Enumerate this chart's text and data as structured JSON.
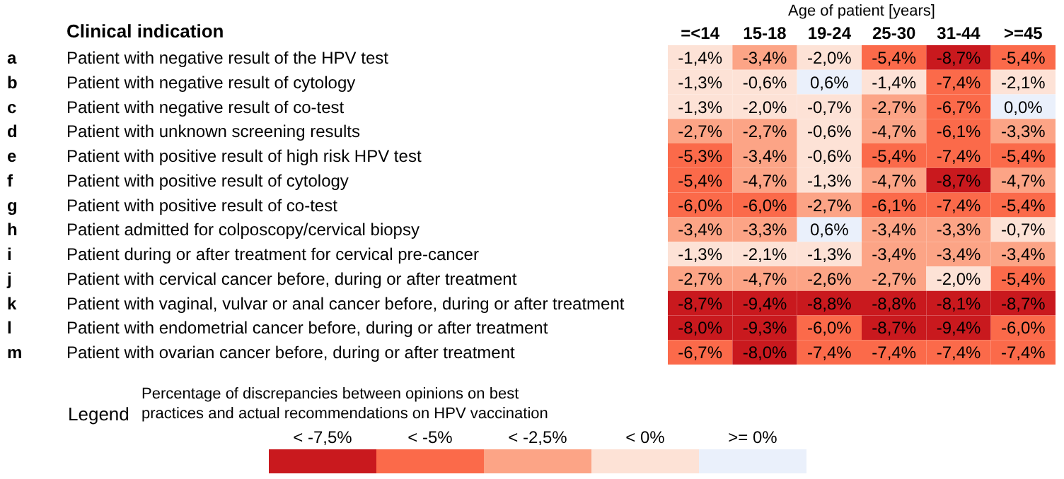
{
  "chart_data": {
    "type": "heatmap",
    "xlabel": "Age of patient [years]",
    "ylabel": "Clinical indication",
    "legend_title": "Legend",
    "clabel": "Percentage of discrepancies between opinions on best practices and actual recommendations on HPV vaccination",
    "categories": [
      "=<14",
      "15-18",
      "19-24",
      "25-30",
      "31-44",
      ">=45"
    ],
    "y2_categories": [
      "a",
      "b",
      "c",
      "d",
      "e",
      "f",
      "g",
      "h",
      "i",
      "j",
      "k",
      "l",
      "m"
    ],
    "y_categories": [
      "Patient with negative result of the HPV test",
      "Patient with negative result of cytology",
      "Patient with negative result of co-test",
      "Patient with unknown screening results",
      "Patient with positive result of high risk HPV test",
      "Patient with positive result of cytology",
      "Patient with positive result of co-test",
      "Patient admitted for colposcopy/cervical biopsy",
      "Patient during or after treatment for cervical pre-cancer",
      "Patient with cervical cancer before, during or after treatment",
      "Patient with vaginal, vulvar or anal cancer before, during or after treatment",
      "Patient with endometrial cancer before, during or after treatment",
      "Patient with ovarian cancer before, during or after treatment"
    ],
    "cells": [
      [
        -1.4,
        -3.4,
        -2.0,
        -5.4,
        -8.7,
        -5.4
      ],
      [
        -1.3,
        -0.6,
        0.6,
        -1.4,
        -7.4,
        -2.1
      ],
      [
        -1.3,
        -2.0,
        -0.7,
        -2.7,
        -6.7,
        0.0
      ],
      [
        -2.7,
        -2.7,
        -0.6,
        -4.7,
        -6.1,
        -3.3
      ],
      [
        -5.3,
        -3.4,
        -0.6,
        -5.4,
        -7.4,
        -5.4
      ],
      [
        -5.4,
        -4.7,
        -1.3,
        -4.7,
        -8.7,
        -4.7
      ],
      [
        -6.0,
        -6.0,
        -2.7,
        -6.1,
        -7.4,
        -5.4
      ],
      [
        -3.4,
        -3.3,
        0.6,
        -3.4,
        -3.3,
        -0.7
      ],
      [
        -1.3,
        -2.1,
        -1.3,
        -3.4,
        -3.4,
        -3.4
      ],
      [
        -2.7,
        -4.7,
        -2.6,
        -2.7,
        -2.0,
        -5.4
      ],
      [
        -8.7,
        -9.4,
        -8.8,
        -8.8,
        -8.1,
        -8.7
      ],
      [
        -8.0,
        -9.3,
        -6.0,
        -8.7,
        -9.4,
        -6.0
      ],
      [
        -6.7,
        -8.0,
        -7.4,
        -7.4,
        -7.4,
        -7.4
      ]
    ],
    "cell_labels": [
      [
        "-1,4%",
        "-3,4%",
        "-2,0%",
        "-5,4%",
        "-8,7%",
        "-5,4%"
      ],
      [
        "-1,3%",
        "-0,6%",
        "0,6%",
        "-1,4%",
        "-7,4%",
        "-2,1%"
      ],
      [
        "-1,3%",
        "-2,0%",
        "-0,7%",
        "-2,7%",
        "-6,7%",
        "0,0%"
      ],
      [
        "-2,7%",
        "-2,7%",
        "-0,6%",
        "-4,7%",
        "-6,1%",
        "-3,3%"
      ],
      [
        "-5,3%",
        "-3,4%",
        "-0,6%",
        "-5,4%",
        "-7,4%",
        "-5,4%"
      ],
      [
        "-5,4%",
        "-4,7%",
        "-1,3%",
        "-4,7%",
        "-8,7%",
        "-4,7%"
      ],
      [
        "-6,0%",
        "-6,0%",
        "-2,7%",
        "-6,1%",
        "-7,4%",
        "-5,4%"
      ],
      [
        "-3,4%",
        "-3,3%",
        "0,6%",
        "-3,4%",
        "-3,3%",
        "-0,7%"
      ],
      [
        "-1,3%",
        "-2,1%",
        "-1,3%",
        "-3,4%",
        "-3,4%",
        "-3,4%"
      ],
      [
        "-2,7%",
        "-4,7%",
        "-2,6%",
        "-2,7%",
        "-2,0%",
        "-5,4%"
      ],
      [
        "-8,7%",
        "-9,4%",
        "-8,8%",
        "-8,8%",
        "-8,1%",
        "-8,7%"
      ],
      [
        "-8,0%",
        "-9,3%",
        "-6,0%",
        "-8,7%",
        "-9,4%",
        "-6,0%"
      ],
      [
        "-6,7%",
        "-8,0%",
        "-7,4%",
        "-7,4%",
        "-7,4%",
        "-7,4%"
      ]
    ],
    "colors": [
      "#c9191e",
      "#fb6a4a",
      "#fca486",
      "#fde2d6",
      "#eaf0fb"
    ],
    "clim": [
      -10,
      2.5
    ],
    "cticks": [
      {
        "value": -8.75,
        "label": "< -7,5%"
      },
      {
        "value": -6.25,
        "label": "< -5%"
      },
      {
        "value": -3.75,
        "label": "< -2,5%"
      },
      {
        "value": -1.25,
        "label": "< 0%"
      },
      {
        "value": 1.25,
        "label": ">= 0%"
      }
    ]
  }
}
